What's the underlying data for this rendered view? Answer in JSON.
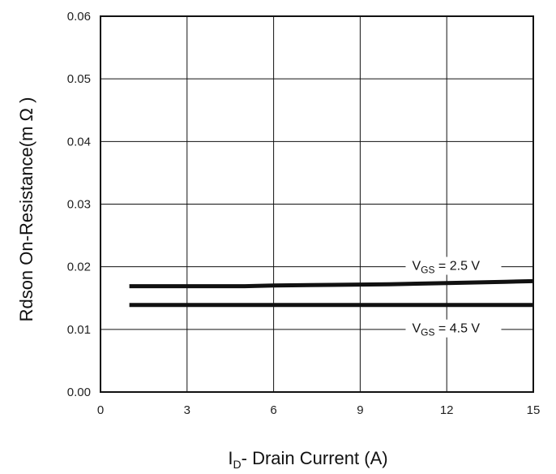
{
  "chart_data": {
    "type": "line",
    "title": "",
    "xlabel": {
      "prefix": "I",
      "sub": "D",
      "suffix": "- Drain Current (A)"
    },
    "ylabel": "Rdson On-Resistance(m Ω )",
    "x_ticks": [
      "0",
      "3",
      "6",
      "9",
      "12",
      "15"
    ],
    "y_ticks": [
      "0.00",
      "0.01",
      "0.02",
      "0.03",
      "0.04",
      "0.05",
      "0.06"
    ],
    "xlim": [
      0,
      15
    ],
    "ylim": [
      0,
      0.06
    ],
    "grid": true,
    "series": [
      {
        "x": [
          1,
          3,
          5,
          6,
          8,
          10,
          12,
          14,
          15
        ],
        "y": [
          0.0169,
          0.0169,
          0.0169,
          0.017,
          0.0171,
          0.0172,
          0.0174,
          0.0176,
          0.0177
        ],
        "color": "#111111"
      },
      {
        "x": [
          1,
          15
        ],
        "y": [
          0.0139,
          0.0139
        ],
        "color": "#111111"
      }
    ],
    "annotations": [
      {
        "prefix": "V",
        "sub": "GS",
        "suffix": " = 2.5 V",
        "x": 10.8,
        "y": 0.0195
      },
      {
        "prefix": "V",
        "sub": "GS",
        "suffix": " = 4.5 V",
        "x": 10.8,
        "y": 0.0095
      }
    ]
  }
}
